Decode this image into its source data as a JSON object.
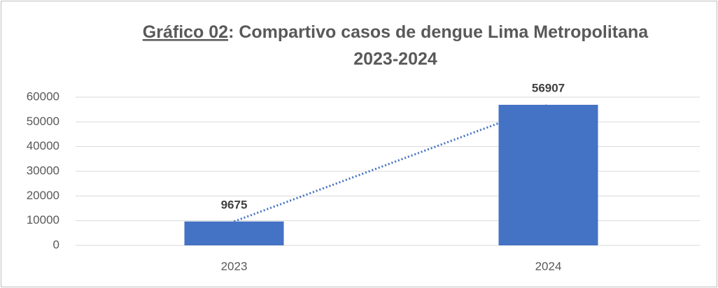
{
  "chart_data": {
    "type": "bar",
    "title": [
      "Gráfico 02: Compartivo casos de dengue Lima Metropolitana",
      "2023-2024"
    ],
    "categories": [
      "2023",
      "2024"
    ],
    "values": [
      9675,
      56907
    ],
    "color": "#4472c4",
    "ylim": [
      0,
      60000
    ],
    "yticks": [
      0,
      10000,
      20000,
      30000,
      40000,
      50000,
      60000
    ],
    "grid": true,
    "trendline": {
      "style": "dotted",
      "color": "#4472c4"
    }
  }
}
